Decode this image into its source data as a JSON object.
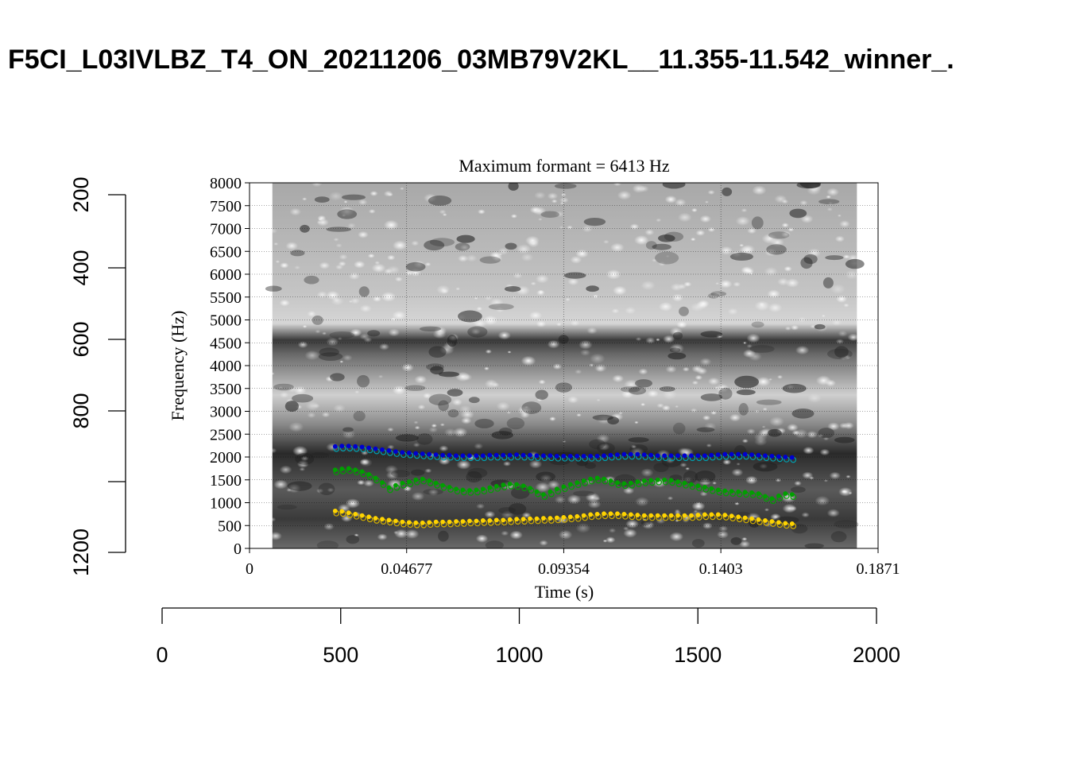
{
  "page_title": "F5CI_L03IVLBZ_T4_ON_20211206_03MB79V2KL__11.355-11.542_winner_.",
  "colors": {
    "f1_filled": "#ffd400",
    "f1_hollow": "#d4b000",
    "f2": "#00a000",
    "f3_filled": "#0000d0",
    "f3_hollow": "#00a0b0",
    "spectrogram_dark": "#1a1a1a",
    "spectrogram_light": "#ffffff"
  },
  "chart_data": [
    {
      "type": "scatter",
      "title": "Maximum formant  =  6413 Hz",
      "xlabel": "Time (s)",
      "ylabel": "Frequency (Hz)",
      "xlim": [
        0,
        0.1871
      ],
      "ylim": [
        0,
        8000
      ],
      "xticks": [
        "0",
        "0.04677",
        "0.09354",
        "0.1403",
        "0.1871"
      ],
      "yticks": [
        "0",
        "500",
        "1000",
        "1500",
        "2000",
        "2500",
        "3000",
        "3500",
        "4000",
        "4500",
        "5000",
        "5500",
        "6000",
        "6500",
        "7000",
        "7500",
        "8000"
      ],
      "grid": true,
      "background": "grayscale spectrogram",
      "spectrogram_time_range": [
        0.0068,
        0.1808
      ],
      "dark_band_hz": [
        [
          4050,
          4400
        ],
        [
          1850,
          2500
        ],
        [
          250,
          1400
        ]
      ],
      "series": [
        {
          "key": "F1",
          "x": [
            0.0255,
            0.0275,
            0.0295,
            0.0315,
            0.0335,
            0.0355,
            0.0375,
            0.0395,
            0.0415,
            0.0435,
            0.0455,
            0.0475,
            0.0495,
            0.0515,
            0.0535,
            0.0555,
            0.0575,
            0.0595,
            0.0615,
            0.0635,
            0.0655,
            0.0675,
            0.0695,
            0.0715,
            0.0735,
            0.0755,
            0.0775,
            0.0795,
            0.0815,
            0.0835,
            0.0855,
            0.0875,
            0.0895,
            0.0915,
            0.0935,
            0.0955,
            0.0975,
            0.0995,
            0.1015,
            0.1035,
            0.1055,
            0.1075,
            0.1095,
            0.1115,
            0.1135,
            0.1155,
            0.1175,
            0.1195,
            0.1215,
            0.1235,
            0.1255,
            0.1275,
            0.1295,
            0.1315,
            0.1335,
            0.1355,
            0.1375,
            0.1395,
            0.1415,
            0.1435,
            0.1455,
            0.1475,
            0.1495,
            0.1515,
            0.1535,
            0.1555,
            0.1575,
            0.1595,
            0.1615
          ],
          "y": [
            820,
            810,
            780,
            750,
            720,
            690,
            660,
            640,
            620,
            600,
            580,
            570,
            560,
            560,
            570,
            580,
            580,
            580,
            590,
            590,
            600,
            600,
            610,
            610,
            620,
            620,
            630,
            640,
            640,
            650,
            650,
            660,
            660,
            670,
            680,
            690,
            700,
            720,
            740,
            750,
            760,
            760,
            760,
            750,
            740,
            730,
            720,
            720,
            720,
            720,
            720,
            720,
            720,
            720,
            730,
            740,
            740,
            740,
            730,
            710,
            690,
            670,
            650,
            630,
            610,
            590,
            570,
            550,
            540
          ]
        },
        {
          "key": "F2",
          "x": [
            0.0255,
            0.0275,
            0.0295,
            0.0315,
            0.0335,
            0.0355,
            0.0375,
            0.0395,
            0.0415,
            0.0435,
            0.0455,
            0.0475,
            0.0495,
            0.0515,
            0.0535,
            0.0555,
            0.0575,
            0.0595,
            0.0615,
            0.0635,
            0.0655,
            0.0675,
            0.0695,
            0.0715,
            0.0735,
            0.0755,
            0.0775,
            0.0795,
            0.0815,
            0.0835,
            0.0855,
            0.0875,
            0.0895,
            0.0915,
            0.0935,
            0.0955,
            0.0975,
            0.0995,
            0.1015,
            0.1035,
            0.1055,
            0.1075,
            0.1095,
            0.1115,
            0.1135,
            0.1155,
            0.1175,
            0.1195,
            0.1215,
            0.1235,
            0.1255,
            0.1275,
            0.1295,
            0.1315,
            0.1335,
            0.1355,
            0.1375,
            0.1395,
            0.1415,
            0.1435,
            0.1455,
            0.1475,
            0.1495,
            0.1515,
            0.1535,
            0.1555,
            0.1575,
            0.1595,
            0.1615
          ],
          "y": [
            1720,
            1740,
            1750,
            1720,
            1680,
            1620,
            1540,
            1440,
            1330,
            1380,
            1430,
            1460,
            1500,
            1520,
            1480,
            1430,
            1380,
            1340,
            1300,
            1280,
            1270,
            1280,
            1300,
            1330,
            1360,
            1390,
            1410,
            1400,
            1370,
            1320,
            1240,
            1180,
            1240,
            1300,
            1350,
            1400,
            1440,
            1480,
            1520,
            1540,
            1520,
            1480,
            1440,
            1420,
            1430,
            1460,
            1480,
            1490,
            1500,
            1500,
            1490,
            1460,
            1430,
            1400,
            1370,
            1340,
            1310,
            1280,
            1260,
            1250,
            1240,
            1230,
            1220,
            1200,
            1140,
            1090,
            1150,
            1200,
            1180
          ]
        },
        {
          "key": "F3",
          "x": [
            0.0255,
            0.0275,
            0.0295,
            0.0315,
            0.0335,
            0.0355,
            0.0375,
            0.0395,
            0.0415,
            0.0435,
            0.0455,
            0.0475,
            0.0495,
            0.0515,
            0.0535,
            0.0555,
            0.0575,
            0.0595,
            0.0615,
            0.0635,
            0.0655,
            0.0675,
            0.0695,
            0.0715,
            0.0735,
            0.0755,
            0.0775,
            0.0795,
            0.0815,
            0.0835,
            0.0855,
            0.0875,
            0.0895,
            0.0915,
            0.0935,
            0.0955,
            0.0975,
            0.0995,
            0.1015,
            0.1035,
            0.1055,
            0.1075,
            0.1095,
            0.1115,
            0.1135,
            0.1155,
            0.1175,
            0.1195,
            0.1215,
            0.1235,
            0.1255,
            0.1275,
            0.1295,
            0.1315,
            0.1335,
            0.1355,
            0.1375,
            0.1395,
            0.1415,
            0.1435,
            0.1455,
            0.1475,
            0.1495,
            0.1515,
            0.1535,
            0.1555,
            0.1575,
            0.1595,
            0.1615
          ],
          "y": [
            2230,
            2240,
            2240,
            2230,
            2220,
            2200,
            2180,
            2160,
            2140,
            2120,
            2100,
            2090,
            2080,
            2070,
            2060,
            2050,
            2040,
            2040,
            2030,
            2030,
            2030,
            2030,
            2030,
            2040,
            2040,
            2040,
            2040,
            2050,
            2040,
            2040,
            2030,
            2030,
            2030,
            2020,
            2020,
            2020,
            2020,
            2020,
            2020,
            2020,
            2030,
            2040,
            2050,
            2060,
            2060,
            2060,
            2050,
            2040,
            2030,
            2030,
            2030,
            2030,
            2030,
            2030,
            2030,
            2030,
            2040,
            2050,
            2060,
            2060,
            2060,
            2060,
            2050,
            2040,
            2030,
            2020,
            2010,
            2000,
            1990
          ]
        }
      ]
    },
    {
      "type": "axis-frame",
      "left_axis_ticks": [
        "200",
        "400",
        "600",
        "800",
        "1200"
      ],
      "bottom_axis_ticks": [
        "0",
        "500",
        "1000",
        "1500",
        "2000"
      ]
    }
  ]
}
